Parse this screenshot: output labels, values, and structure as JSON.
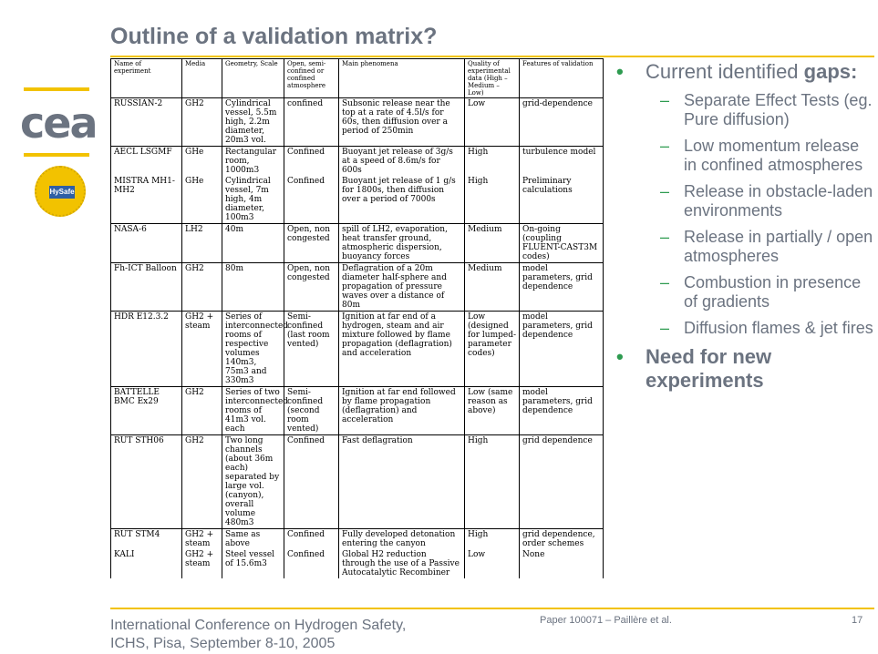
{
  "slide": {
    "title": "Outline of a validation matrix?",
    "footer_conference": "International Conference on Hydrogen Safety,",
    "footer_location": "ICHS, Pisa, September 8-10, 2005",
    "footer_ref": "Paper 100071 – Paillère et al.",
    "page_number": "17"
  },
  "logos": {
    "cea": "cea",
    "hysafe": "HySafe"
  },
  "table": {
    "headers": [
      "Name of experiment",
      "Media",
      "Geometry, Scale",
      "Open, semi-confined or confined atmosphere",
      "Main phenomena",
      "Quality of experimental data (High – Medium – Low)",
      "Features of validation"
    ],
    "rows": [
      [
        "RUSSIAN-2",
        "GH2",
        "Cylindrical vessel, 5.5m high, 2.2m diameter, 20m3 vol.",
        "confined",
        "Subsonic release near the top at a rate of 4.5l/s for 60s, then diffusion over a period of 250min",
        "Low",
        "grid-dependence"
      ],
      [
        "AECL LSGMF",
        "GHe",
        "Rectangular room, 1000m3",
        "Confined",
        "Buoyant jet release of 3g/s at a speed of 8.6m/s for 600s",
        "High",
        "turbulence model"
      ],
      [
        "MISTRA MH1-MH2",
        "GHe",
        "Cylindrical vessel, 7m high, 4m diameter, 100m3",
        "Confined",
        "Buoyant jet release of 1 g/s for 1800s, then diffusion over a period of 7000s",
        "High",
        "Preliminary calculations"
      ],
      [
        "NASA-6",
        "LH2",
        "40m",
        "Open, non congested",
        "spill of LH2, evaporation, heat transfer ground, atmospheric dispersion, buoyancy forces",
        "Medium",
        "On-going (coupling FLUENT-CAST3M codes)"
      ],
      [
        "Fh-ICT Balloon",
        "GH2",
        "80m",
        "Open, non congested",
        "Deflagration of a 20m diameter half-sphere and propagation of pressure waves over a distance of 80m",
        "Medium",
        "model parameters, grid dependence"
      ],
      [
        "HDR E12.3.2",
        "GH2 + steam",
        "Series of interconnected rooms of respective volumes 140m3, 75m3 and 330m3",
        "Semi-confined (last room vented)",
        "Ignition at far end of a hydrogen, steam and air mixture followed by flame propagation (deflagration) and acceleration",
        "Low (designed for lumped-parameter codes)",
        "model parameters, grid dependence"
      ],
      [
        "BATTELLE BMC Ex29",
        "GH2",
        "Series of two interconnected rooms of 41m3 vol. each",
        "Semi-confined (second room vented)",
        "Ignition at far end followed by flame propagation (deflagration) and acceleration",
        "Low (same reason as above)",
        "model parameters, grid dependence"
      ],
      [
        "RUT STH06",
        "GH2",
        "Two long channels (about 36m each) separated by large vol. (canyon), overall volume 480m3",
        "Confined",
        "Fast deflagration",
        "High",
        "grid dependence"
      ],
      [
        "RUT STM4",
        "GH2 + steam",
        "Same as above",
        "Confined",
        "Fully developed detonation entering the canyon",
        "High",
        "grid dependence, order schemes"
      ],
      [
        "KALI",
        "GH2 + steam",
        "Steel vessel of 15.6m3",
        "Confined",
        "Global H2 reduction through the use of a Passive Autocatalytic Recombiner",
        "Low",
        "None"
      ]
    ]
  },
  "gaps": {
    "heading_prefix": "Current identified",
    "heading_bold": "gaps:",
    "items": [
      "Separate Effect Tests (eg. Pure diffusion)",
      "Low momentum release in confined atmospheres",
      "Release in obstacle-laden environments",
      "Release in partially / open atmospheres",
      "Combustion in presence of gradients",
      "Diffusion flames & jet fires"
    ],
    "conclusion": "Need for new experiments"
  },
  "colors": {
    "title_gray": "#6b7380",
    "accent_yellow": "#f2c200",
    "bullet_green": "#2e9b50"
  }
}
